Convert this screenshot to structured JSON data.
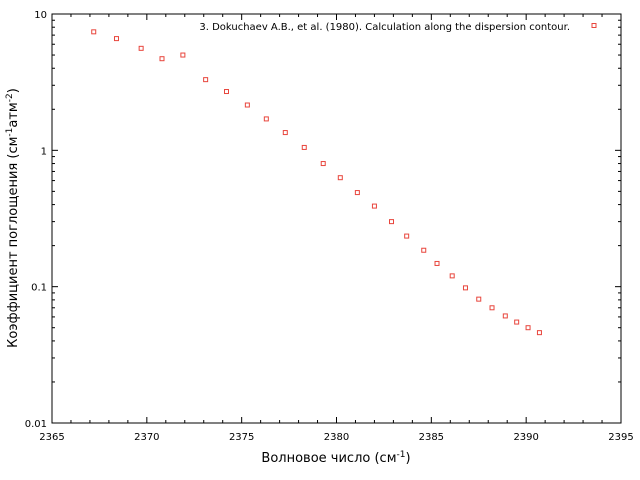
{
  "chart_data": {
    "type": "scatter",
    "xlabel": "Волновое число (см",
    "xlabel_sup": "-1",
    "xlabel_end": ")",
    "ylabel": "Коэффициент поглощения (см",
    "ylabel_sup1": "-1",
    "ylabel_mid": "атм",
    "ylabel_sup2": "-2",
    "ylabel_end": ")",
    "xlim": [
      2365,
      2395
    ],
    "ylim": [
      0.01,
      10
    ],
    "y_scale": "log",
    "x_ticks": [
      2365,
      2370,
      2375,
      2380,
      2385,
      2390,
      2395
    ],
    "x_tick_labels": [
      "2365",
      "2370",
      "2375",
      "2380",
      "2385",
      "2390",
      "2395"
    ],
    "y_ticks": [
      0.01,
      0.1,
      1,
      10
    ],
    "y_tick_labels": [
      "0.01",
      "0.1",
      "1",
      "10"
    ],
    "grid": false,
    "legend_position": "top-right",
    "series": [
      {
        "name": "3. Dokuchaev A.B., et al. (1980). Calculation along the dispersion contour.",
        "color": "#e8453c",
        "marker": "open-square",
        "x": [
          2367.2,
          2368.4,
          2369.7,
          2370.8,
          2371.9,
          2373.1,
          2374.2,
          2375.3,
          2376.3,
          2377.3,
          2378.3,
          2379.3,
          2380.2,
          2381.1,
          2382.0,
          2382.9,
          2383.7,
          2384.6,
          2385.3,
          2386.1,
          2386.8,
          2387.5,
          2388.2,
          2388.9,
          2389.5,
          2390.1,
          2390.7
        ],
        "y": [
          7.4,
          6.6,
          5.6,
          4.7,
          5.0,
          3.3,
          2.7,
          2.15,
          1.7,
          1.35,
          1.05,
          0.8,
          0.63,
          0.49,
          0.39,
          0.3,
          0.235,
          0.185,
          0.148,
          0.12,
          0.098,
          0.081,
          0.07,
          0.061,
          0.055,
          0.05,
          0.046
        ]
      }
    ]
  }
}
